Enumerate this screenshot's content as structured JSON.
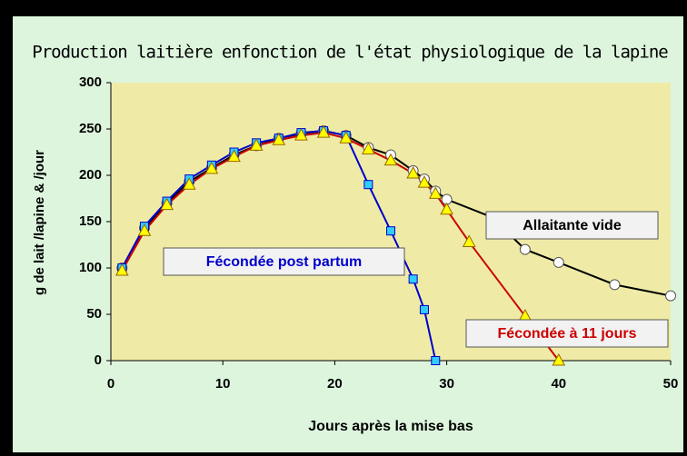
{
  "chart_data": {
    "type": "line",
    "title": "Production laitière enfonction de l'état physiologique de la lapine",
    "x_label": "Jours après la mise bas",
    "y_label": "g de lait /lapine & /jour",
    "xlim": [
      0,
      50
    ],
    "xticks": [
      0,
      10,
      20,
      30,
      40,
      50
    ],
    "ylim": [
      0,
      300
    ],
    "yticks": [
      0,
      50,
      100,
      150,
      200,
      250,
      300
    ],
    "grid": false,
    "series": [
      {
        "name": "Allaitante vide",
        "color": "#000000",
        "marker": "circle",
        "marker_color": "#ffffff",
        "x": [
          1,
          3,
          5,
          7,
          9,
          11,
          13,
          15,
          17,
          19,
          21,
          23,
          25,
          27,
          28,
          29,
          30,
          34,
          37,
          40,
          45,
          50
        ],
        "values": [
          100,
          143,
          170,
          193,
          208,
          222,
          232,
          240,
          245,
          248,
          243,
          230,
          222,
          205,
          196,
          183,
          174,
          155,
          120,
          106,
          82,
          70
        ]
      },
      {
        "name": "Fécondée post partum",
        "color": "#0000cc",
        "marker": "square",
        "marker_color": "#33ccff",
        "x": [
          1,
          3,
          5,
          7,
          9,
          11,
          13,
          15,
          17,
          19,
          21,
          23,
          25,
          27,
          28,
          29
        ],
        "values": [
          100,
          145,
          172,
          196,
          211,
          225,
          235,
          240,
          246,
          248,
          243,
          190,
          140,
          88,
          55,
          0
        ]
      },
      {
        "name": "Fécondée à 11 jours",
        "color": "#cc0000",
        "marker": "triangle",
        "marker_color": "#ffff00",
        "x": [
          1,
          3,
          5,
          7,
          9,
          11,
          13,
          15,
          17,
          19,
          21,
          23,
          25,
          27,
          28,
          29,
          30,
          32,
          37,
          40
        ],
        "values": [
          97,
          140,
          168,
          190,
          207,
          220,
          232,
          238,
          243,
          246,
          240,
          228,
          216,
          202,
          192,
          180,
          163,
          128,
          48,
          0
        ]
      }
    ]
  }
}
